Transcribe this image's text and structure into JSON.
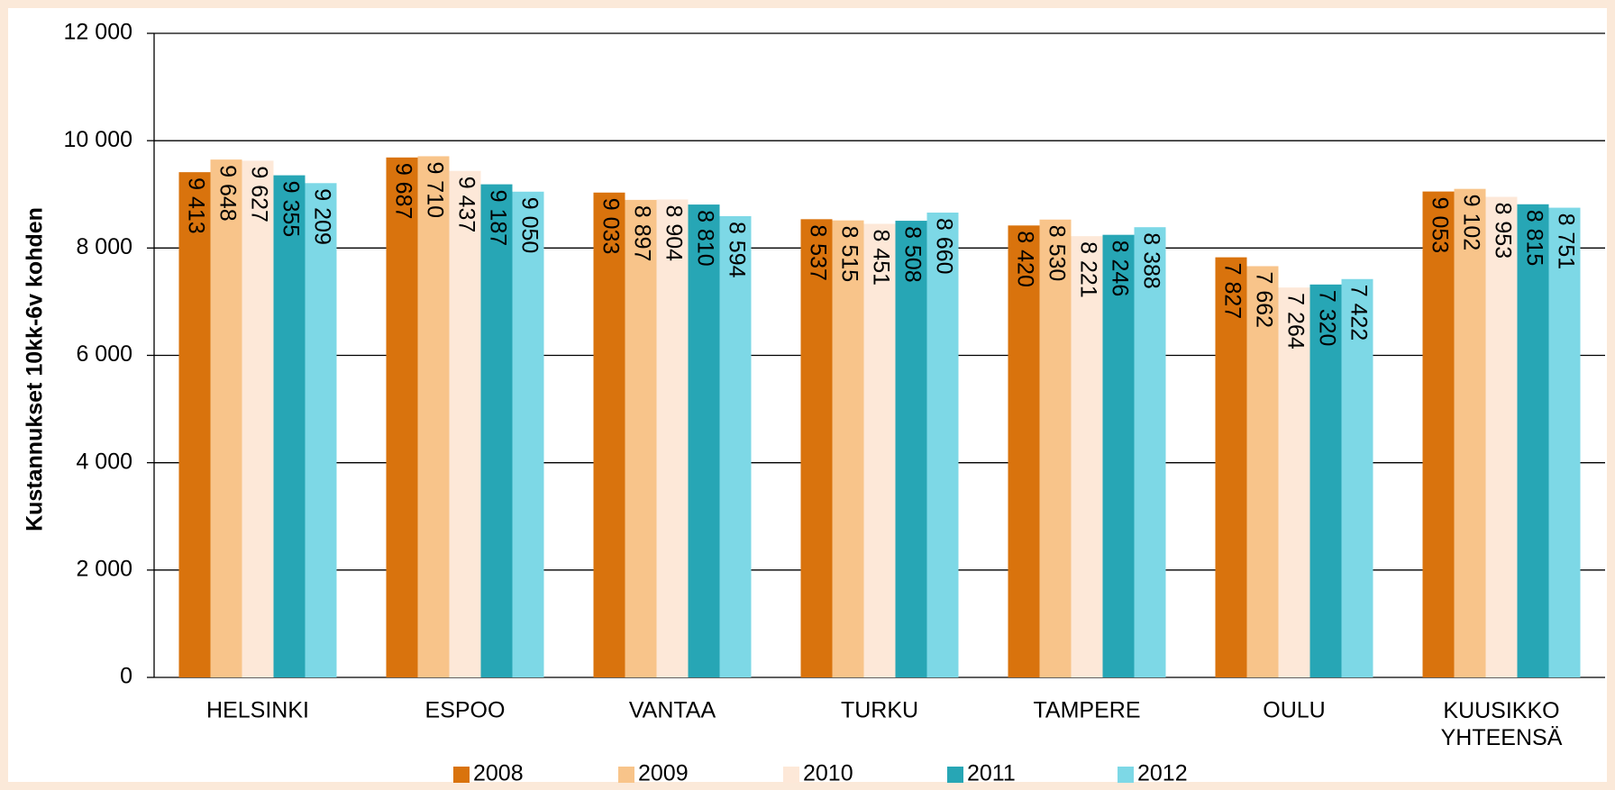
{
  "chart_data": {
    "type": "bar",
    "y_label": "Kustannukset 10kk-6v kohden",
    "categories": [
      "HELSINKI",
      "ESPOO",
      "VANTAA",
      "TURKU",
      "TAMPERE",
      "OULU",
      "KUUSIKKO YHTEENSÄ"
    ],
    "series": [
      {
        "name": "2008",
        "color": "#d9730d",
        "values": [
          9413,
          9687,
          9033,
          8537,
          8420,
          7827,
          9053
        ],
        "value_labels": [
          "9 413",
          "9 687",
          "9 033",
          "8 537",
          "8 420",
          "7 827",
          "9 053"
        ]
      },
      {
        "name": "2009",
        "color": "#f8c48a",
        "values": [
          9648,
          9710,
          8897,
          8515,
          8530,
          7662,
          9102
        ],
        "value_labels": [
          "9 648",
          "9 710",
          "8 897",
          "8 515",
          "8 530",
          "7 662",
          "9 102"
        ]
      },
      {
        "name": "2010",
        "color": "#fde8d8",
        "values": [
          9627,
          9437,
          8904,
          8451,
          8221,
          7264,
          8953
        ],
        "value_labels": [
          "9 627",
          "9 437",
          "8 904",
          "8 451",
          "8 221",
          "7 264",
          "8 953"
        ]
      },
      {
        "name": "2011",
        "color": "#27a6b5",
        "values": [
          9355,
          9187,
          8810,
          8508,
          8246,
          7320,
          8815
        ],
        "value_labels": [
          "9 355",
          "9 187",
          "8 810",
          "8 508",
          "8 246",
          "7 320",
          "8 815"
        ]
      },
      {
        "name": "2012",
        "color": "#7dd8e6",
        "values": [
          9209,
          9050,
          8594,
          8660,
          8388,
          7422,
          8751
        ],
        "value_labels": [
          "9 209",
          "9 050",
          "8 594",
          "8 660",
          "8 388",
          "7 422",
          "8 751"
        ]
      }
    ],
    "ylim": [
      0,
      12000
    ],
    "yticks": [
      0,
      {
        "value": 2000,
        "label": "2 000"
      },
      {
        "value": 4000,
        "label": "4 000"
      },
      {
        "value": 6000,
        "label": "6 000"
      },
      {
        "value": 8000,
        "label": "8 000"
      },
      {
        "value": 10000,
        "label": "10 000"
      },
      {
        "value": 12000,
        "label": "12 000"
      }
    ],
    "grid": true,
    "legend": "bottom"
  }
}
